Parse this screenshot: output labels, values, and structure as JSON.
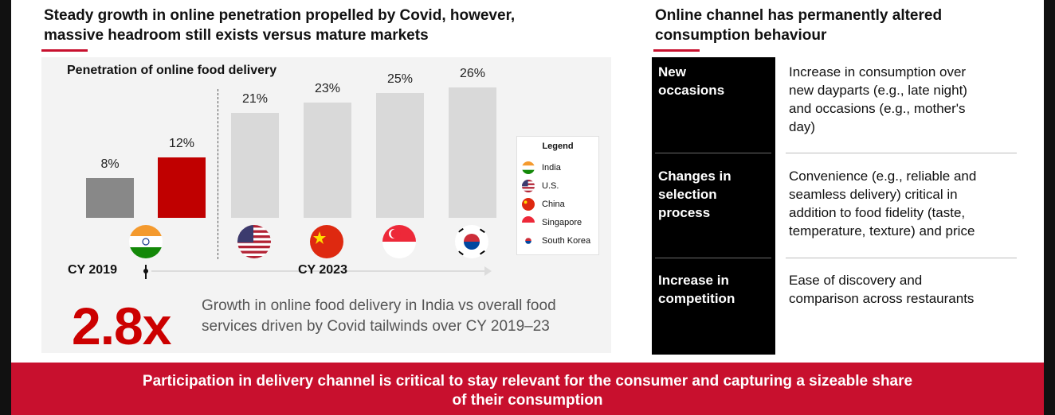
{
  "left_heading": {
    "line1": "Steady growth in online penetration propelled by Covid, however,",
    "line2": "massive headroom still exists versus mature markets"
  },
  "right_heading": {
    "line1": "Online channel has permanently altered",
    "line2": "consumption behaviour"
  },
  "colors": {
    "accent": "#c8102e",
    "india_2023": "#c00000",
    "india_2019": "#888888",
    "others": "#d9d9d9"
  },
  "chart_data": {
    "type": "bar",
    "title": "Penetration of online food delivery",
    "categories": [
      "India CY 2019",
      "India CY 2023",
      "U.S. CY 2023",
      "China CY 2023",
      "Singapore CY 2023",
      "South Korea CY 2023"
    ],
    "values": [
      8,
      12,
      21,
      23,
      25,
      26
    ],
    "labels": [
      "8%",
      "12%",
      "21%",
      "23%",
      "25%",
      "26%"
    ],
    "unit": "%",
    "x_axis": {
      "start_label": "CY 2019",
      "end_label": "CY 2023"
    },
    "legend": {
      "title": "Legend",
      "items": [
        "India",
        "U.S.",
        "China",
        "Singapore",
        "South Korea"
      ]
    }
  },
  "growth": {
    "value": "2.8x",
    "line1": "Growth in online food delivery in India vs overall food",
    "line2": "services driven by Covid tailwinds over CY 2019–23"
  },
  "rows": [
    {
      "label_lines": [
        "New",
        "occasions"
      ],
      "text_lines": [
        "Increase in consumption over",
        "new dayparts (e.g., late night)",
        "and occasions (e.g., mother's",
        "day)"
      ]
    },
    {
      "label_lines": [
        "Changes in",
        "selection",
        "process"
      ],
      "text_lines": [
        "Convenience (e.g., reliable and",
        "seamless delivery) critical in",
        "addition to food fidelity (taste,",
        "temperature, texture) and price"
      ]
    },
    {
      "label_lines": [
        "Increase in",
        "competition"
      ],
      "text_lines": [
        "Ease of discovery and",
        "comparison across restaurants"
      ]
    }
  ],
  "footer": {
    "line1": "Participation in delivery channel is critical to stay relevant for the consumer and capturing a sizeable share",
    "line2": "of their consumption"
  }
}
